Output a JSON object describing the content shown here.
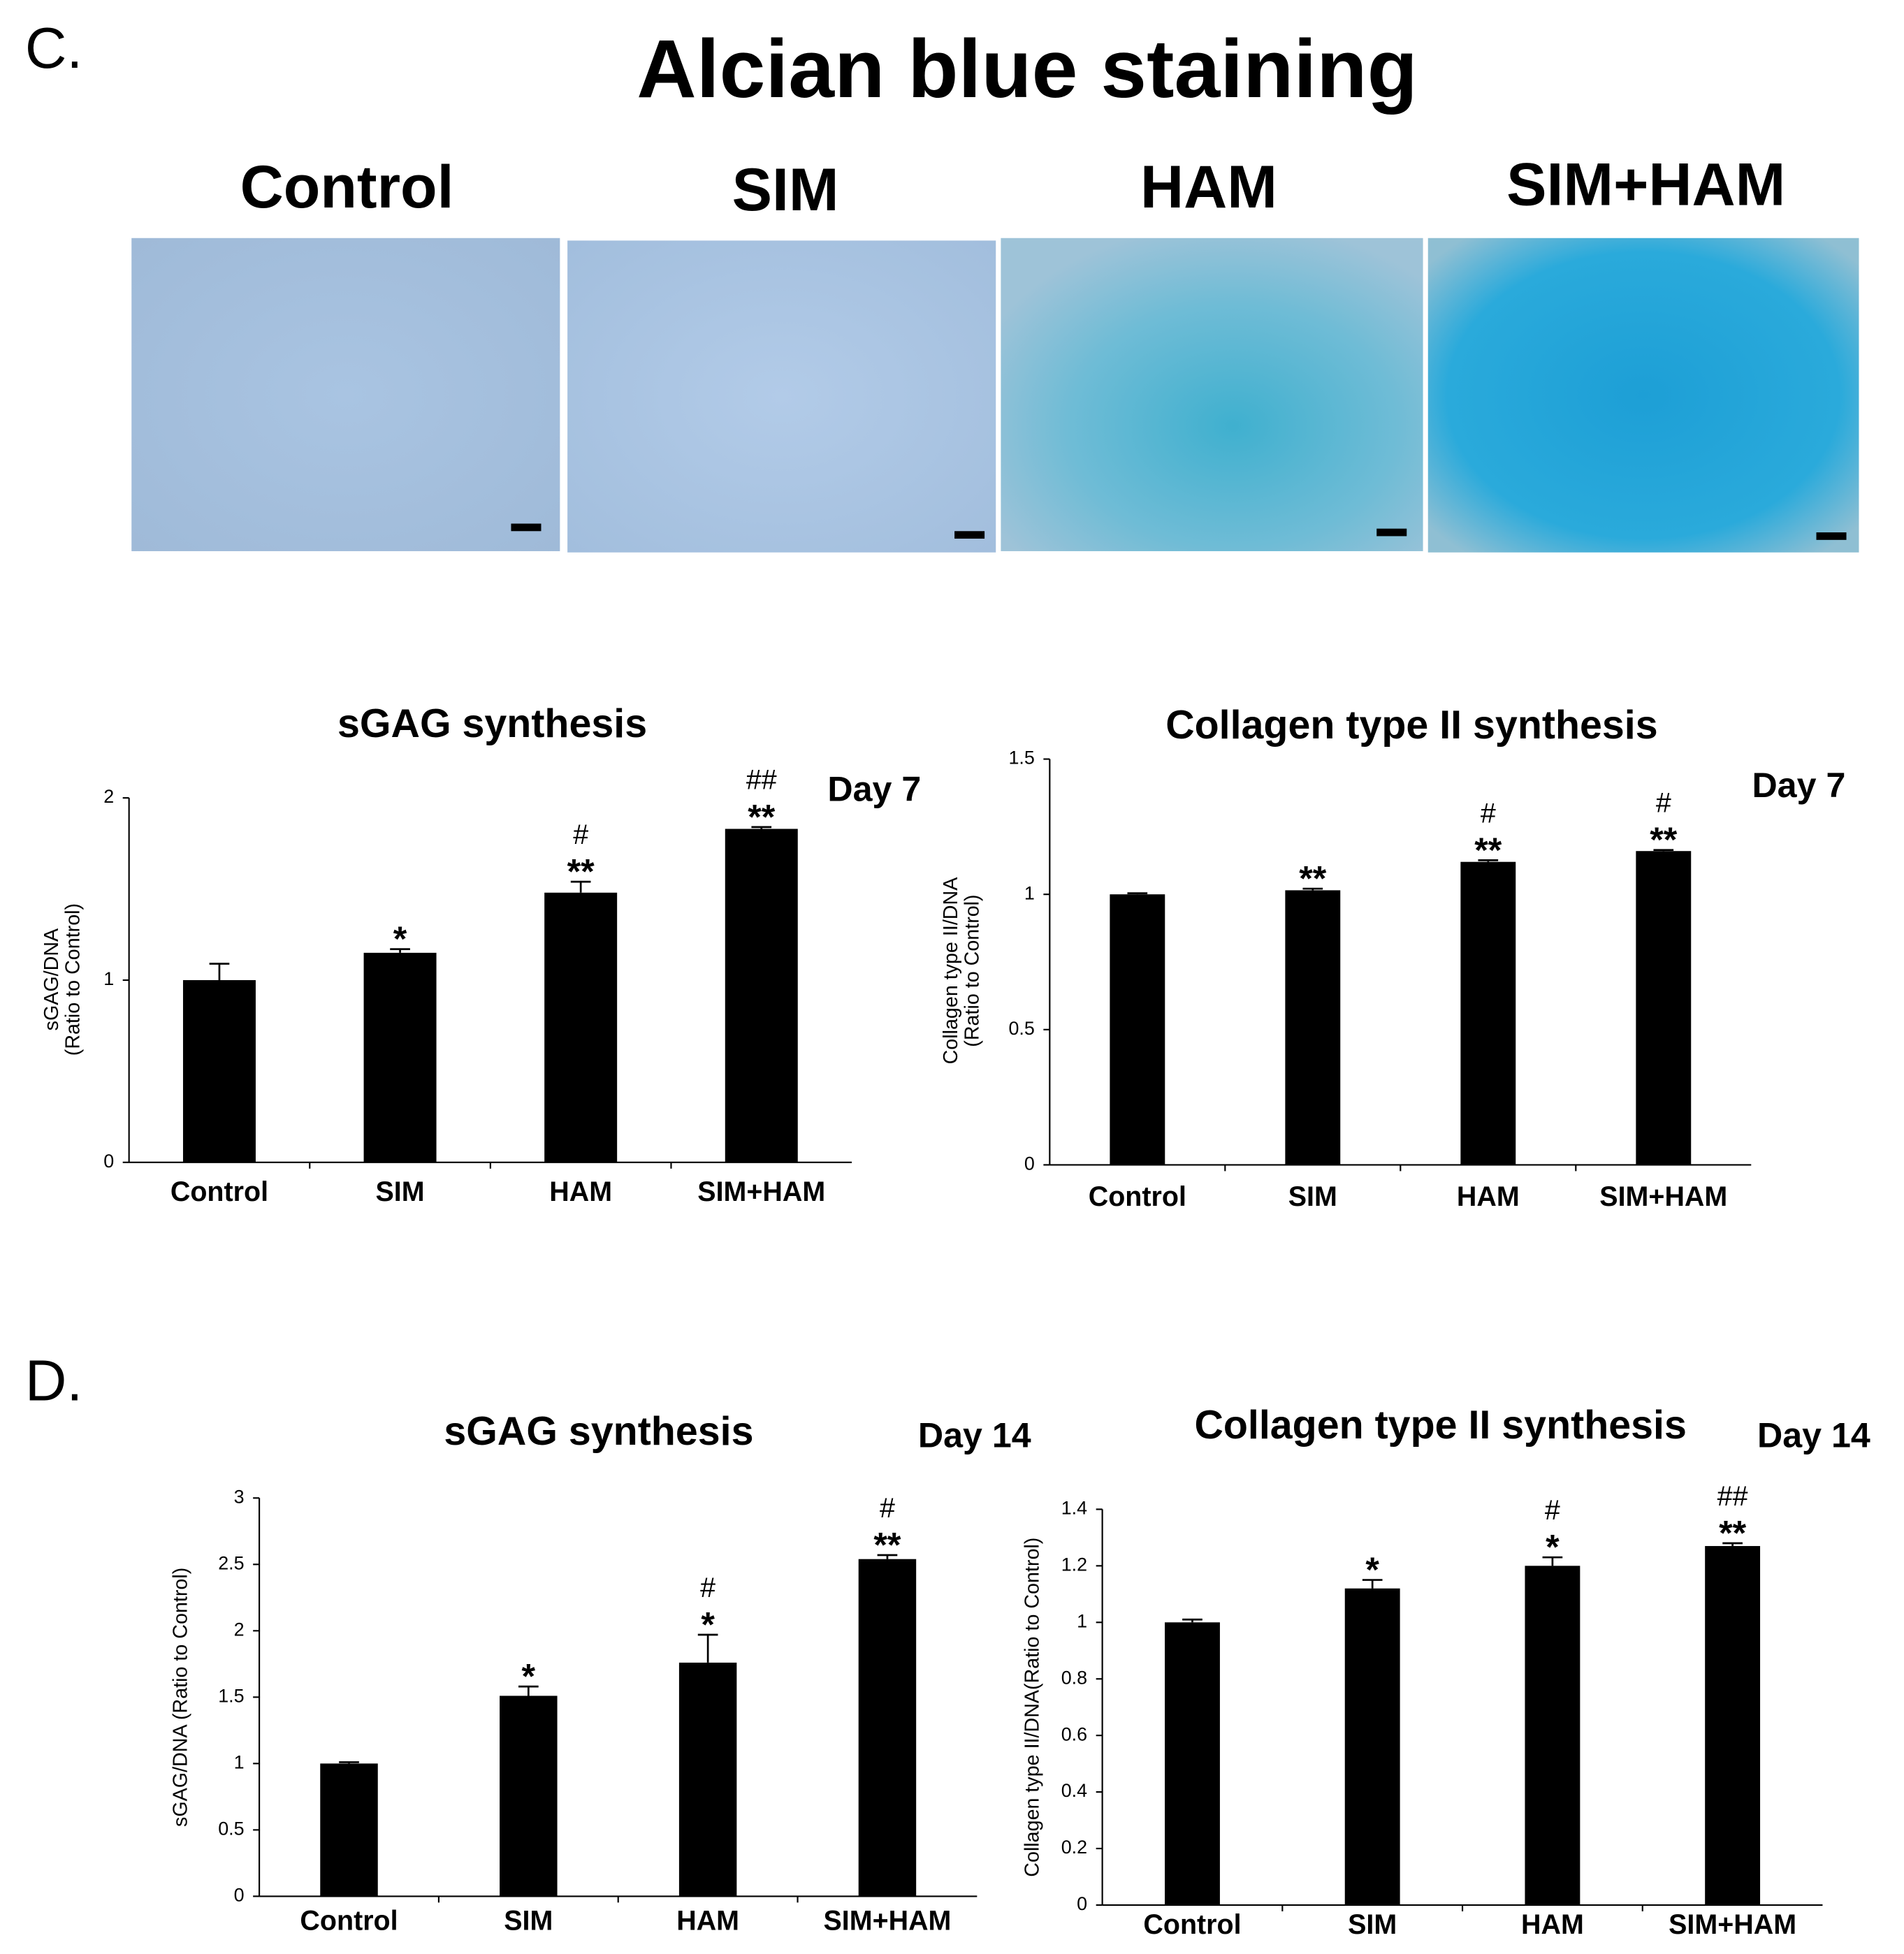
{
  "panel_labels": [
    "C.",
    "D."
  ],
  "title": "Alcian blue staining",
  "images": [
    {
      "label": "Control"
    },
    {
      "label": "SIM"
    },
    {
      "label": "HAM"
    },
    {
      "label": "SIM+HAM"
    }
  ],
  "chart_data": [
    {
      "type": "bar",
      "title": "sGAG synthesis",
      "annotation": "Day 7",
      "ylabel": [
        "sGAG/DNA",
        "(Ratio to Control)"
      ],
      "categories": [
        "Control",
        "SIM",
        "HAM",
        "SIM+HAM"
      ],
      "values": [
        1.0,
        1.15,
        1.48,
        1.83
      ],
      "errors": [
        0.09,
        0.02,
        0.06,
        0.01
      ],
      "significance": [
        [],
        [
          "*"
        ],
        [
          "#",
          "**"
        ],
        [
          "##",
          "**"
        ]
      ],
      "color": "#000000",
      "ylim": [
        0,
        2
      ],
      "yticks": [
        0,
        1,
        2
      ]
    },
    {
      "type": "bar",
      "title": "Collagen type II synthesis",
      "annotation": "Day 7",
      "ylabel": [
        "Collagen type II/DNA",
        "(Ratio to Control)"
      ],
      "categories": [
        "Control",
        "SIM",
        "HAM",
        "SIM+HAM"
      ],
      "values": [
        1.0,
        1.015,
        1.12,
        1.16
      ],
      "errors": [
        0.004,
        0.006,
        0.006,
        0.004
      ],
      "significance": [
        [],
        [
          "**"
        ],
        [
          "#",
          "**"
        ],
        [
          "#",
          "**"
        ]
      ],
      "color": "#000000",
      "ylim": [
        0,
        1.5
      ],
      "yticks": [
        0,
        0.5,
        1,
        1.5
      ]
    },
    {
      "type": "bar",
      "title": "sGAG synthesis",
      "annotation": "Day 14",
      "ylabel": [
        "sGAG/DNA (Ratio to Control)"
      ],
      "categories": [
        "Control",
        "SIM",
        "HAM",
        "SIM+HAM"
      ],
      "values": [
        1.0,
        1.51,
        1.76,
        2.54
      ],
      "errors": [
        0.01,
        0.07,
        0.21,
        0.03
      ],
      "significance": [
        [],
        [
          "*"
        ],
        [
          "#",
          "*"
        ],
        [
          "#",
          "**"
        ]
      ],
      "color": "#000000",
      "ylim": [
        0,
        3
      ],
      "yticks": [
        0,
        0.5,
        1,
        1.5,
        2,
        2.5,
        3
      ]
    },
    {
      "type": "bar",
      "title": "Collagen type II synthesis",
      "annotation": "Day 14",
      "ylabel": [
        "Collagen type II/DNA(Ratio to Control)"
      ],
      "categories": [
        "Control",
        "SIM",
        "HAM",
        "SIM+HAM"
      ],
      "values": [
        1.0,
        1.12,
        1.2,
        1.27
      ],
      "errors": [
        0.01,
        0.03,
        0.03,
        0.01
      ],
      "significance": [
        [],
        [
          "*"
        ],
        [
          "#",
          "*"
        ],
        [
          "##",
          "**"
        ]
      ],
      "color": "#000000",
      "ylim": [
        0,
        1.4
      ],
      "yticks": [
        0,
        0.2,
        0.4,
        0.6,
        0.8,
        1,
        1.2,
        1.4
      ]
    }
  ]
}
